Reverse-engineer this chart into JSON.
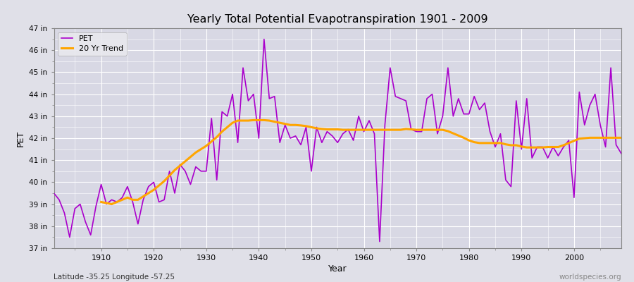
{
  "title": "Yearly Total Potential Evapotranspiration 1901 - 2009",
  "xlabel": "Year",
  "ylabel": "PET",
  "subtitle_lat": "Latitude -35.25 Longitude -57.25",
  "watermark": "worldspecies.org",
  "pet_color": "#AA00CC",
  "trend_color": "#FFA500",
  "bg_color": "#E0E0E8",
  "plot_bg_color": "#D8D8E4",
  "grid_color": "#FFFFFF",
  "ylim_min": 37,
  "ylim_max": 47,
  "years": [
    1901,
    1902,
    1903,
    1904,
    1905,
    1906,
    1907,
    1908,
    1909,
    1910,
    1911,
    1912,
    1913,
    1914,
    1915,
    1916,
    1917,
    1918,
    1919,
    1920,
    1921,
    1922,
    1923,
    1924,
    1925,
    1926,
    1927,
    1928,
    1929,
    1930,
    1931,
    1932,
    1933,
    1934,
    1935,
    1936,
    1937,
    1938,
    1939,
    1940,
    1941,
    1942,
    1943,
    1944,
    1945,
    1946,
    1947,
    1948,
    1949,
    1950,
    1951,
    1952,
    1953,
    1954,
    1955,
    1956,
    1957,
    1958,
    1959,
    1960,
    1961,
    1962,
    1963,
    1964,
    1965,
    1966,
    1967,
    1968,
    1969,
    1970,
    1971,
    1972,
    1973,
    1974,
    1975,
    1976,
    1977,
    1978,
    1979,
    1980,
    1981,
    1982,
    1983,
    1984,
    1985,
    1986,
    1987,
    1988,
    1989,
    1990,
    1991,
    1992,
    1993,
    1994,
    1995,
    1996,
    1997,
    1998,
    1999,
    2000,
    2001,
    2002,
    2003,
    2004,
    2005,
    2006,
    2007,
    2008,
    2009
  ],
  "pet_values": [
    39.5,
    39.2,
    38.6,
    37.5,
    38.8,
    39.0,
    38.2,
    37.6,
    38.9,
    39.9,
    39.0,
    39.2,
    39.1,
    39.3,
    39.8,
    39.1,
    38.1,
    39.2,
    39.8,
    40.0,
    39.1,
    39.2,
    40.5,
    39.5,
    40.8,
    40.5,
    39.9,
    40.7,
    40.5,
    40.5,
    42.9,
    40.1,
    43.2,
    43.0,
    44.0,
    41.8,
    45.2,
    43.7,
    44.0,
    42.0,
    46.5,
    43.8,
    43.9,
    41.8,
    42.6,
    42.0,
    42.1,
    41.7,
    42.5,
    40.5,
    42.5,
    41.8,
    42.3,
    42.1,
    41.8,
    42.2,
    42.4,
    41.9,
    43.0,
    42.3,
    42.8,
    42.2,
    37.3,
    42.6,
    45.2,
    43.9,
    43.8,
    43.7,
    42.4,
    42.3,
    42.3,
    43.8,
    44.0,
    42.2,
    43.0,
    45.2,
    43.0,
    43.8,
    43.1,
    43.1,
    43.9,
    43.3,
    43.6,
    42.3,
    41.6,
    42.2,
    40.1,
    39.8,
    43.7,
    41.5,
    43.8,
    41.1,
    41.6,
    41.6,
    41.1,
    41.6,
    41.2,
    41.6,
    41.9,
    39.3,
    44.1,
    42.6,
    43.5,
    44.0,
    42.6,
    41.6,
    45.2,
    41.7,
    41.3
  ],
  "trend_years": [
    1910,
    1911,
    1912,
    1913,
    1914,
    1915,
    1916,
    1917,
    1918,
    1919,
    1920,
    1921,
    1922,
    1923,
    1924,
    1925,
    1926,
    1927,
    1928,
    1929,
    1930,
    1931,
    1932,
    1933,
    1934,
    1935,
    1936,
    1937,
    1938,
    1939,
    1940,
    1941,
    1942,
    1943,
    1944,
    1945,
    1946,
    1947,
    1948,
    1949,
    1950,
    1951,
    1952,
    1953,
    1954,
    1955,
    1956,
    1957,
    1958,
    1959,
    1960,
    1961,
    1962,
    1963,
    1964,
    1965,
    1966,
    1967,
    1968,
    1969,
    1970,
    1971,
    1972,
    1973,
    1974,
    1975,
    1976,
    1977,
    1978,
    1979,
    1980,
    1981,
    1982,
    1983,
    1984,
    1985,
    1986,
    1987,
    1988,
    1989,
    1990,
    1991,
    1992,
    1993,
    1994,
    1995,
    1996,
    1997,
    1998,
    1999,
    2000,
    2001,
    2002,
    2003,
    2004,
    2005,
    2006,
    2007,
    2008,
    2009
  ],
  "trend_values": [
    39.1,
    39.05,
    39.0,
    39.1,
    39.2,
    39.3,
    39.2,
    39.2,
    39.35,
    39.5,
    39.65,
    39.85,
    40.05,
    40.3,
    40.55,
    40.75,
    40.95,
    41.15,
    41.35,
    41.5,
    41.65,
    41.85,
    42.05,
    42.3,
    42.5,
    42.7,
    42.8,
    42.8,
    42.8,
    42.82,
    42.82,
    42.82,
    42.8,
    42.75,
    42.7,
    42.65,
    42.6,
    42.6,
    42.58,
    42.55,
    42.5,
    42.45,
    42.42,
    42.4,
    42.4,
    42.4,
    42.38,
    42.38,
    42.38,
    42.38,
    42.38,
    42.38,
    42.38,
    42.38,
    42.38,
    42.38,
    42.38,
    42.38,
    42.42,
    42.4,
    42.38,
    42.38,
    42.38,
    42.38,
    42.38,
    42.38,
    42.32,
    42.22,
    42.12,
    42.02,
    41.9,
    41.82,
    41.78,
    41.78,
    41.78,
    41.78,
    41.78,
    41.72,
    41.68,
    41.68,
    41.62,
    41.58,
    41.58,
    41.58,
    41.58,
    41.6,
    41.6,
    41.6,
    41.68,
    41.78,
    41.88,
    41.98,
    42.0,
    42.02,
    42.02,
    42.02,
    42.02,
    42.02,
    42.02,
    42.02
  ]
}
